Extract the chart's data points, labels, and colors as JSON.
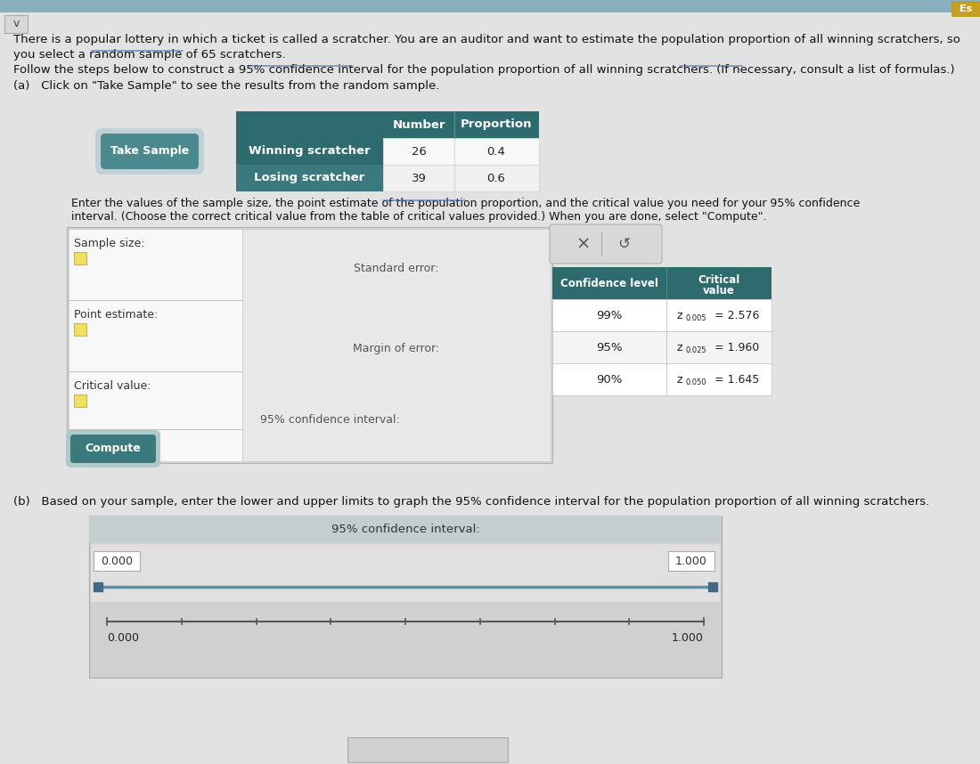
{
  "bg_color": "#e8e8e8",
  "header_line1": "There is a popular lottery in which a ticket is called a scratcher. You are an auditor and want to estimate the population proportion of all winning scratchers, so",
  "header_line2": "you select a random sample of 65 scratchers.",
  "follow_text": "Follow the steps below to construct a 95% confidence interval for the population proportion of all winning scratchers. (If necessary, consult a list of formulas.)",
  "part_a_label": "(a)   Click on \"Take Sample\" to see the results from the random sample.",
  "table_header_bg": "#2d6b6e",
  "table_row1_bg": "#2d6b6e",
  "table_row2_bg": "#3a7a7e",
  "table_header_color": "#ffffff",
  "take_sample_btn_text": "Take Sample",
  "take_sample_btn_bg": "#4a8a8e",
  "enter_line1": "Enter the values of the sample size, the point estimate of the population proportion, and the critical value you need for your 95% confidence",
  "enter_line2": "interval. (Choose the correct critical value from the table of critical values provided.) When you are done, select \"Compute\".",
  "left_panel_labels": [
    "Sample size:",
    "Point estimate:",
    "Critical value:"
  ],
  "center_labels_positions": [
    "Standard error:",
    "Margin of error:",
    "95% confidence interval:"
  ],
  "compute_btn_text": "Compute",
  "compute_btn_bg": "#3a7a7e",
  "critical_table_bg": "#2d6b6e",
  "critical_rows": [
    {
      "level": "99%",
      "sub": "0.005",
      "val": "= 2.576"
    },
    {
      "level": "95%",
      "sub": "0.025",
      "val": "= 1.960"
    },
    {
      "level": "90%",
      "sub": "0.050",
      "val": "= 1.645"
    }
  ],
  "part_b_label": "(b)   Based on your sample, enter the lower and upper limits to graph the 95% confidence interval for the population proportion of all winning scratchers.",
  "ci_header": "95% confidence interval:",
  "ci_left": "0.000",
  "ci_right": "1.000",
  "axis_left": "0.000",
  "axis_right": "1.000",
  "slider_color": "#6090a0",
  "page_bg": "#e2e2e2",
  "top_strip_bg": "#b0c4cc",
  "form_bg": "#d8d8d8",
  "left_panel_bg": "#f0f0f0",
  "center_panel_bg": "#e8e8e8",
  "ci_box_bg": "#d4d4d4",
  "ci_header_bg": "#c4cece"
}
